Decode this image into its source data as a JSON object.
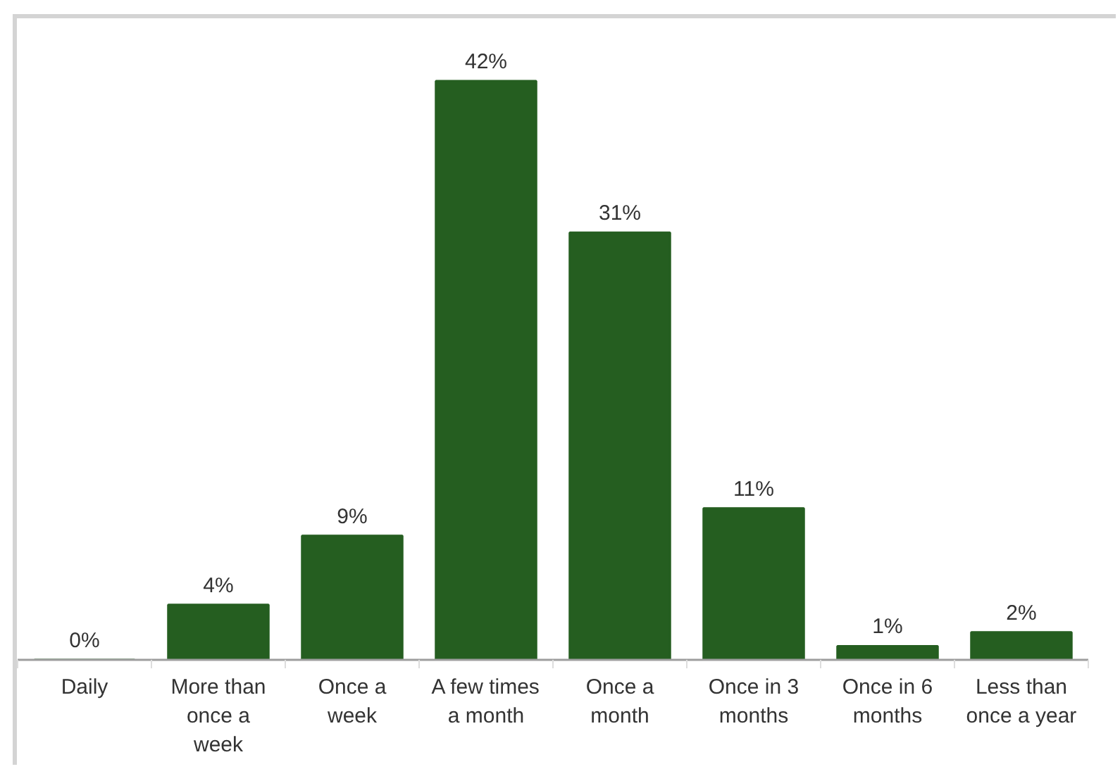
{
  "chart_data": {
    "type": "bar",
    "categories": [
      "Daily",
      "More than once a week",
      "Once a week",
      "A few times a month",
      "Once a month",
      "Once in 3 months",
      "Once in 6 months",
      "Less than once a year"
    ],
    "values": [
      0,
      4,
      9,
      42,
      31,
      11,
      1,
      2
    ],
    "value_labels": [
      "0%",
      "4%",
      "9%",
      "42%",
      "31%",
      "11%",
      "1%",
      "2%"
    ],
    "color": "#255e20",
    "grid": false
  }
}
